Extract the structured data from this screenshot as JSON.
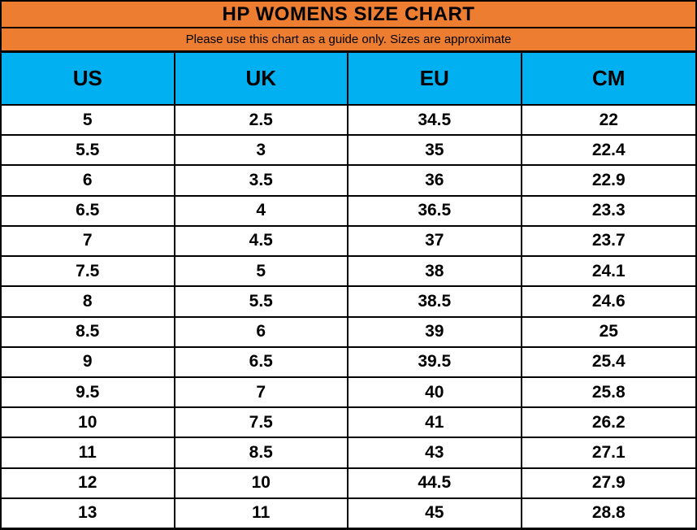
{
  "title": "HP WOMENS SIZE CHART",
  "subtitle": "Please use this chart as a guide only. Sizes are approximate",
  "colors": {
    "header_orange": "#ED7D31",
    "header_blue": "#00B0F0",
    "border": "#000000",
    "text": "#000000",
    "row_background": "#FFFFFF"
  },
  "chart_data": {
    "type": "table",
    "title": "HP WOMENS SIZE CHART",
    "subtitle": "Please use this chart as a guide only. Sizes are approximate",
    "columns": [
      "US",
      "UK",
      "EU",
      "CM"
    ],
    "rows": [
      [
        "5",
        "2.5",
        "34.5",
        "22"
      ],
      [
        "5.5",
        "3",
        "35",
        "22.4"
      ],
      [
        "6",
        "3.5",
        "36",
        "22.9"
      ],
      [
        "6.5",
        "4",
        "36.5",
        "23.3"
      ],
      [
        "7",
        "4.5",
        "37",
        "23.7"
      ],
      [
        "7.5",
        "5",
        "38",
        "24.1"
      ],
      [
        "8",
        "5.5",
        "38.5",
        "24.6"
      ],
      [
        "8.5",
        "6",
        "39",
        "25"
      ],
      [
        "9",
        "6.5",
        "39.5",
        "25.4"
      ],
      [
        "9.5",
        "7",
        "40",
        "25.8"
      ],
      [
        "10",
        "7.5",
        "41",
        "26.2"
      ],
      [
        "11",
        "8.5",
        "43",
        "27.1"
      ],
      [
        "12",
        "10",
        "44.5",
        "27.9"
      ],
      [
        "13",
        "11",
        "45",
        "28.8"
      ]
    ]
  }
}
